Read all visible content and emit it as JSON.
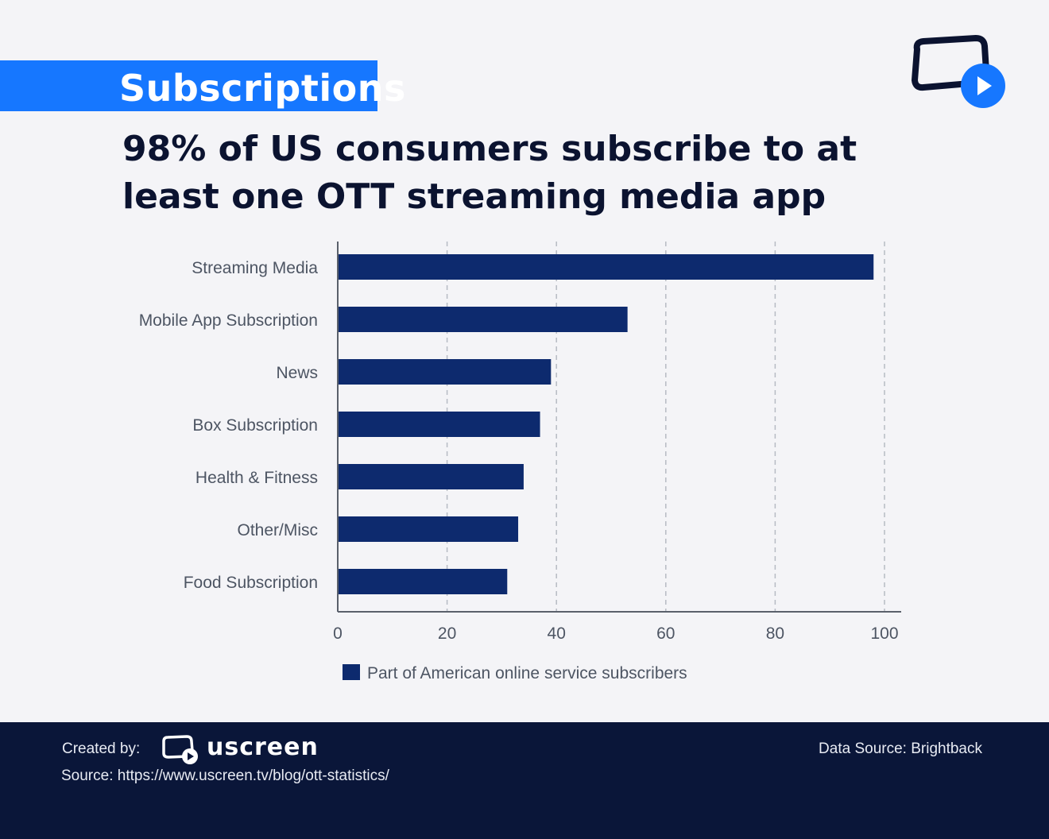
{
  "badge": {
    "label": "Subscriptions"
  },
  "headline": "98% of US consumers subscribe to at least one OTT streaming media app",
  "colors": {
    "accent": "#1677ff",
    "bar": "#0d2a6e",
    "footer_bg": "#0a1639",
    "background": "#f4f4f7"
  },
  "chart_data": {
    "type": "bar",
    "orientation": "horizontal",
    "title": "98% of US consumers subscribe to at least one OTT streaming media app",
    "categories": [
      "Streaming Media",
      "Mobile App Subscription",
      "News",
      "Box Subscription",
      "Health & Fitness",
      "Other/Misc",
      "Food Subscription"
    ],
    "series": [
      {
        "name": "Part of American online service subscribers",
        "values": [
          98,
          53,
          39,
          37,
          34,
          33,
          31
        ]
      }
    ],
    "xlim": [
      0,
      100
    ],
    "xticks": [
      0,
      20,
      40,
      60,
      80,
      100
    ],
    "grid": true,
    "legend": "bottom",
    "xlabel": "",
    "ylabel": ""
  },
  "footer": {
    "created_by": "Created by:",
    "brand": "uscreen",
    "source": "Source: https://www.uscreen.tv/blog/ott-statistics/",
    "data_source": "Data Source: Brightback"
  }
}
